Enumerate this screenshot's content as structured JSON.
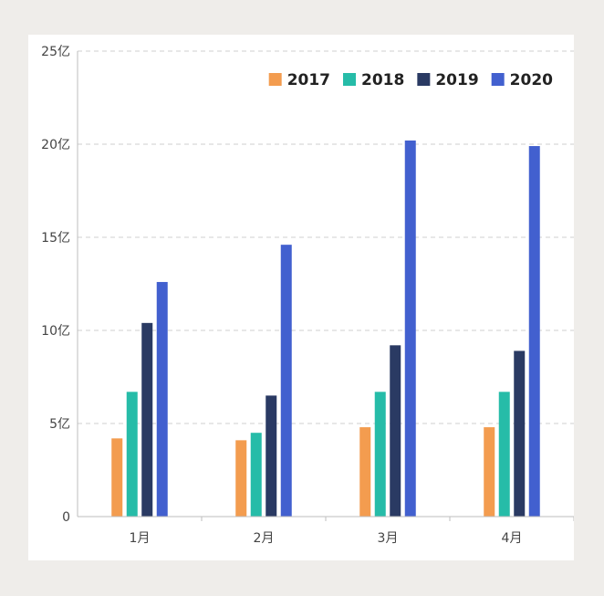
{
  "chart_data": {
    "type": "bar",
    "title": "",
    "xlabel": "",
    "ylabel": "",
    "categories": [
      "1月",
      "2月",
      "3月",
      "4月"
    ],
    "series": [
      {
        "name": "2017",
        "color": "#f39c4f",
        "values": [
          4.2,
          4.1,
          4.8,
          4.8
        ]
      },
      {
        "name": "2018",
        "color": "#26bca8",
        "values": [
          6.7,
          4.5,
          6.7,
          6.7
        ]
      },
      {
        "name": "2019",
        "color": "#2a3a63",
        "values": [
          10.4,
          6.5,
          9.2,
          8.9
        ]
      },
      {
        "name": "2020",
        "color": "#4260cf",
        "values": [
          12.6,
          14.6,
          20.2,
          19.9
        ]
      }
    ],
    "ylim": [
      0,
      25
    ],
    "y_ticks": [
      0,
      5,
      10,
      15,
      20,
      25
    ],
    "y_tick_labels": [
      "0",
      "5亿",
      "10亿",
      "15亿",
      "20亿",
      "25亿"
    ],
    "grid": true,
    "legend_position": "top-right"
  }
}
